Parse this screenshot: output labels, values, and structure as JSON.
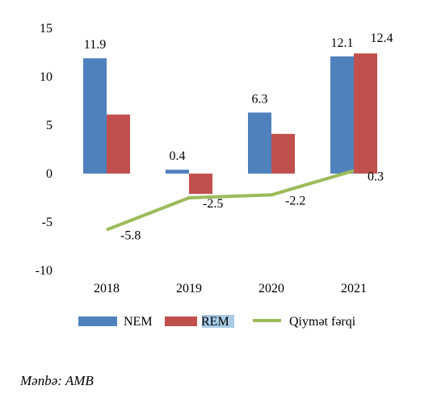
{
  "chart_data": {
    "type": "bar",
    "categories": [
      "2018",
      "2019",
      "2020",
      "2021"
    ],
    "series": [
      {
        "name": "NEM",
        "type": "bar",
        "color": "#4F81BD",
        "values": [
          11.9,
          0.4,
          6.3,
          12.1
        ],
        "labels": [
          "11.9",
          "0.4",
          "6.3",
          "12.1"
        ]
      },
      {
        "name": "REM",
        "type": "bar",
        "color": "#C0504D",
        "values": [
          6.1,
          -2.1,
          4.1,
          12.4
        ],
        "labels": [
          "",
          "",
          "",
          "12.4"
        ]
      },
      {
        "name": "Qiymət fərqi",
        "type": "line",
        "color": "#9BBB59",
        "values": [
          -5.8,
          -2.5,
          -2.2,
          0.3
        ],
        "labels": [
          "-5.8",
          "-2.5",
          "-2.2",
          "0.3"
        ]
      }
    ],
    "y_ticks": [
      "15",
      "10",
      "5",
      "0",
      "-5",
      "-10"
    ],
    "ylim": [
      -10,
      15
    ],
    "grid": false,
    "legend_position": "bottom"
  },
  "source": "Mənbə: AMB"
}
